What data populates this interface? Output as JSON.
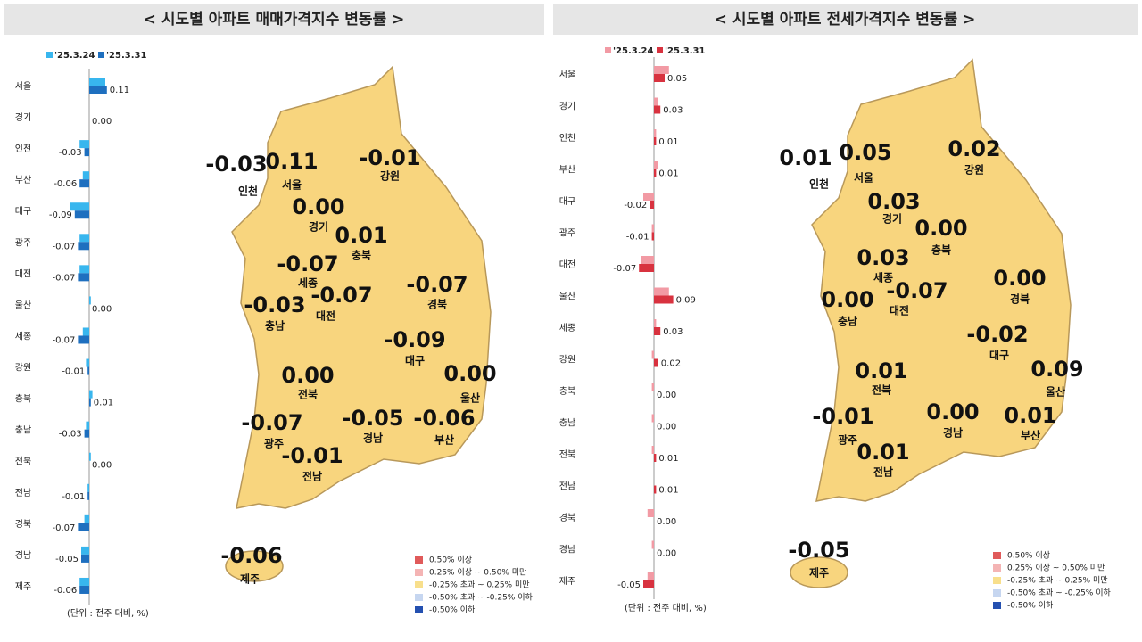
{
  "chart_data": [
    {
      "type": "bar",
      "orientation": "horizontal",
      "title": "< 시도별 아파트 매매가격지수 변동률 >",
      "categories": [
        "서울",
        "경기",
        "인천",
        "부산",
        "대구",
        "광주",
        "대전",
        "울산",
        "세종",
        "강원",
        "충북",
        "충남",
        "전북",
        "전남",
        "경북",
        "경남",
        "제주"
      ],
      "series": [
        {
          "name": "'25.3.24",
          "color": "#38b6ee",
          "values": [
            0.1,
            0.0,
            -0.06,
            -0.04,
            -0.12,
            -0.06,
            -0.06,
            0.01,
            -0.04,
            -0.02,
            0.02,
            -0.02,
            0.01,
            -0.01,
            -0.03,
            -0.05,
            -0.06
          ]
        },
        {
          "name": "'25.3.31",
          "color": "#1e6fbf",
          "values": [
            0.11,
            0.0,
            -0.03,
            -0.06,
            -0.09,
            -0.07,
            -0.07,
            0.0,
            -0.07,
            -0.01,
            0.01,
            -0.03,
            0.0,
            -0.01,
            -0.07,
            -0.05,
            -0.06
          ],
          "value_labels": [
            "0.11",
            "0.00",
            "-0.03",
            "-0.06",
            "-0.09",
            "-0.07",
            "-0.07",
            "0.00",
            "-0.07",
            "-0.01",
            "0.01",
            "-0.03",
            "0.00",
            "-0.01",
            "-0.07",
            "-0.05",
            "-0.06"
          ]
        }
      ],
      "unit_note": "(단위 : 전주 대비, %)"
    },
    {
      "type": "bar",
      "orientation": "horizontal",
      "title": "< 시도별 아파트 전세가격지수 변동률 >",
      "categories": [
        "서울",
        "경기",
        "인천",
        "부산",
        "대구",
        "광주",
        "대전",
        "울산",
        "세종",
        "강원",
        "충북",
        "충남",
        "전북",
        "전남",
        "경북",
        "경남",
        "제주"
      ],
      "series": [
        {
          "name": "'25.3.24",
          "color": "#f29aa4",
          "values": [
            0.07,
            0.02,
            0.01,
            0.02,
            -0.05,
            -0.01,
            -0.06,
            0.07,
            0.01,
            -0.01,
            -0.01,
            -0.01,
            -0.01,
            0.0,
            -0.03,
            -0.01,
            -0.03
          ]
        },
        {
          "name": "'25.3.31",
          "color": "#d8323f",
          "values": [
            0.05,
            0.03,
            0.01,
            0.01,
            -0.02,
            -0.01,
            -0.07,
            0.09,
            0.03,
            0.02,
            0.0,
            0.0,
            0.01,
            0.01,
            0.0,
            0.0,
            -0.05
          ],
          "value_labels": [
            "0.05",
            "0.03",
            "0.01",
            "0.01",
            "-0.02",
            "-0.01",
            "-0.07",
            "0.09",
            "0.03",
            "0.02",
            "0.00",
            "0.00",
            "0.01",
            "0.01",
            "0.00",
            "0.00",
            "-0.05"
          ]
        }
      ],
      "unit_note": "(단위 : 전주 대비, %)"
    }
  ],
  "map_legend": [
    {
      "label": "0.50% 이상",
      "color": "#e05a5a"
    },
    {
      "label": "0.25% 이상 ~ 0.50% 미만",
      "color": "#f4b4b4"
    },
    {
      "label": "-0.25% 초과 ~ 0.25% 미만",
      "color": "#f8df8c"
    },
    {
      "label": "-0.50% 초과 ~ -0.25% 이하",
      "color": "#c6d6f0"
    },
    {
      "label": "-0.50% 이하",
      "color": "#2450b0"
    }
  ]
}
